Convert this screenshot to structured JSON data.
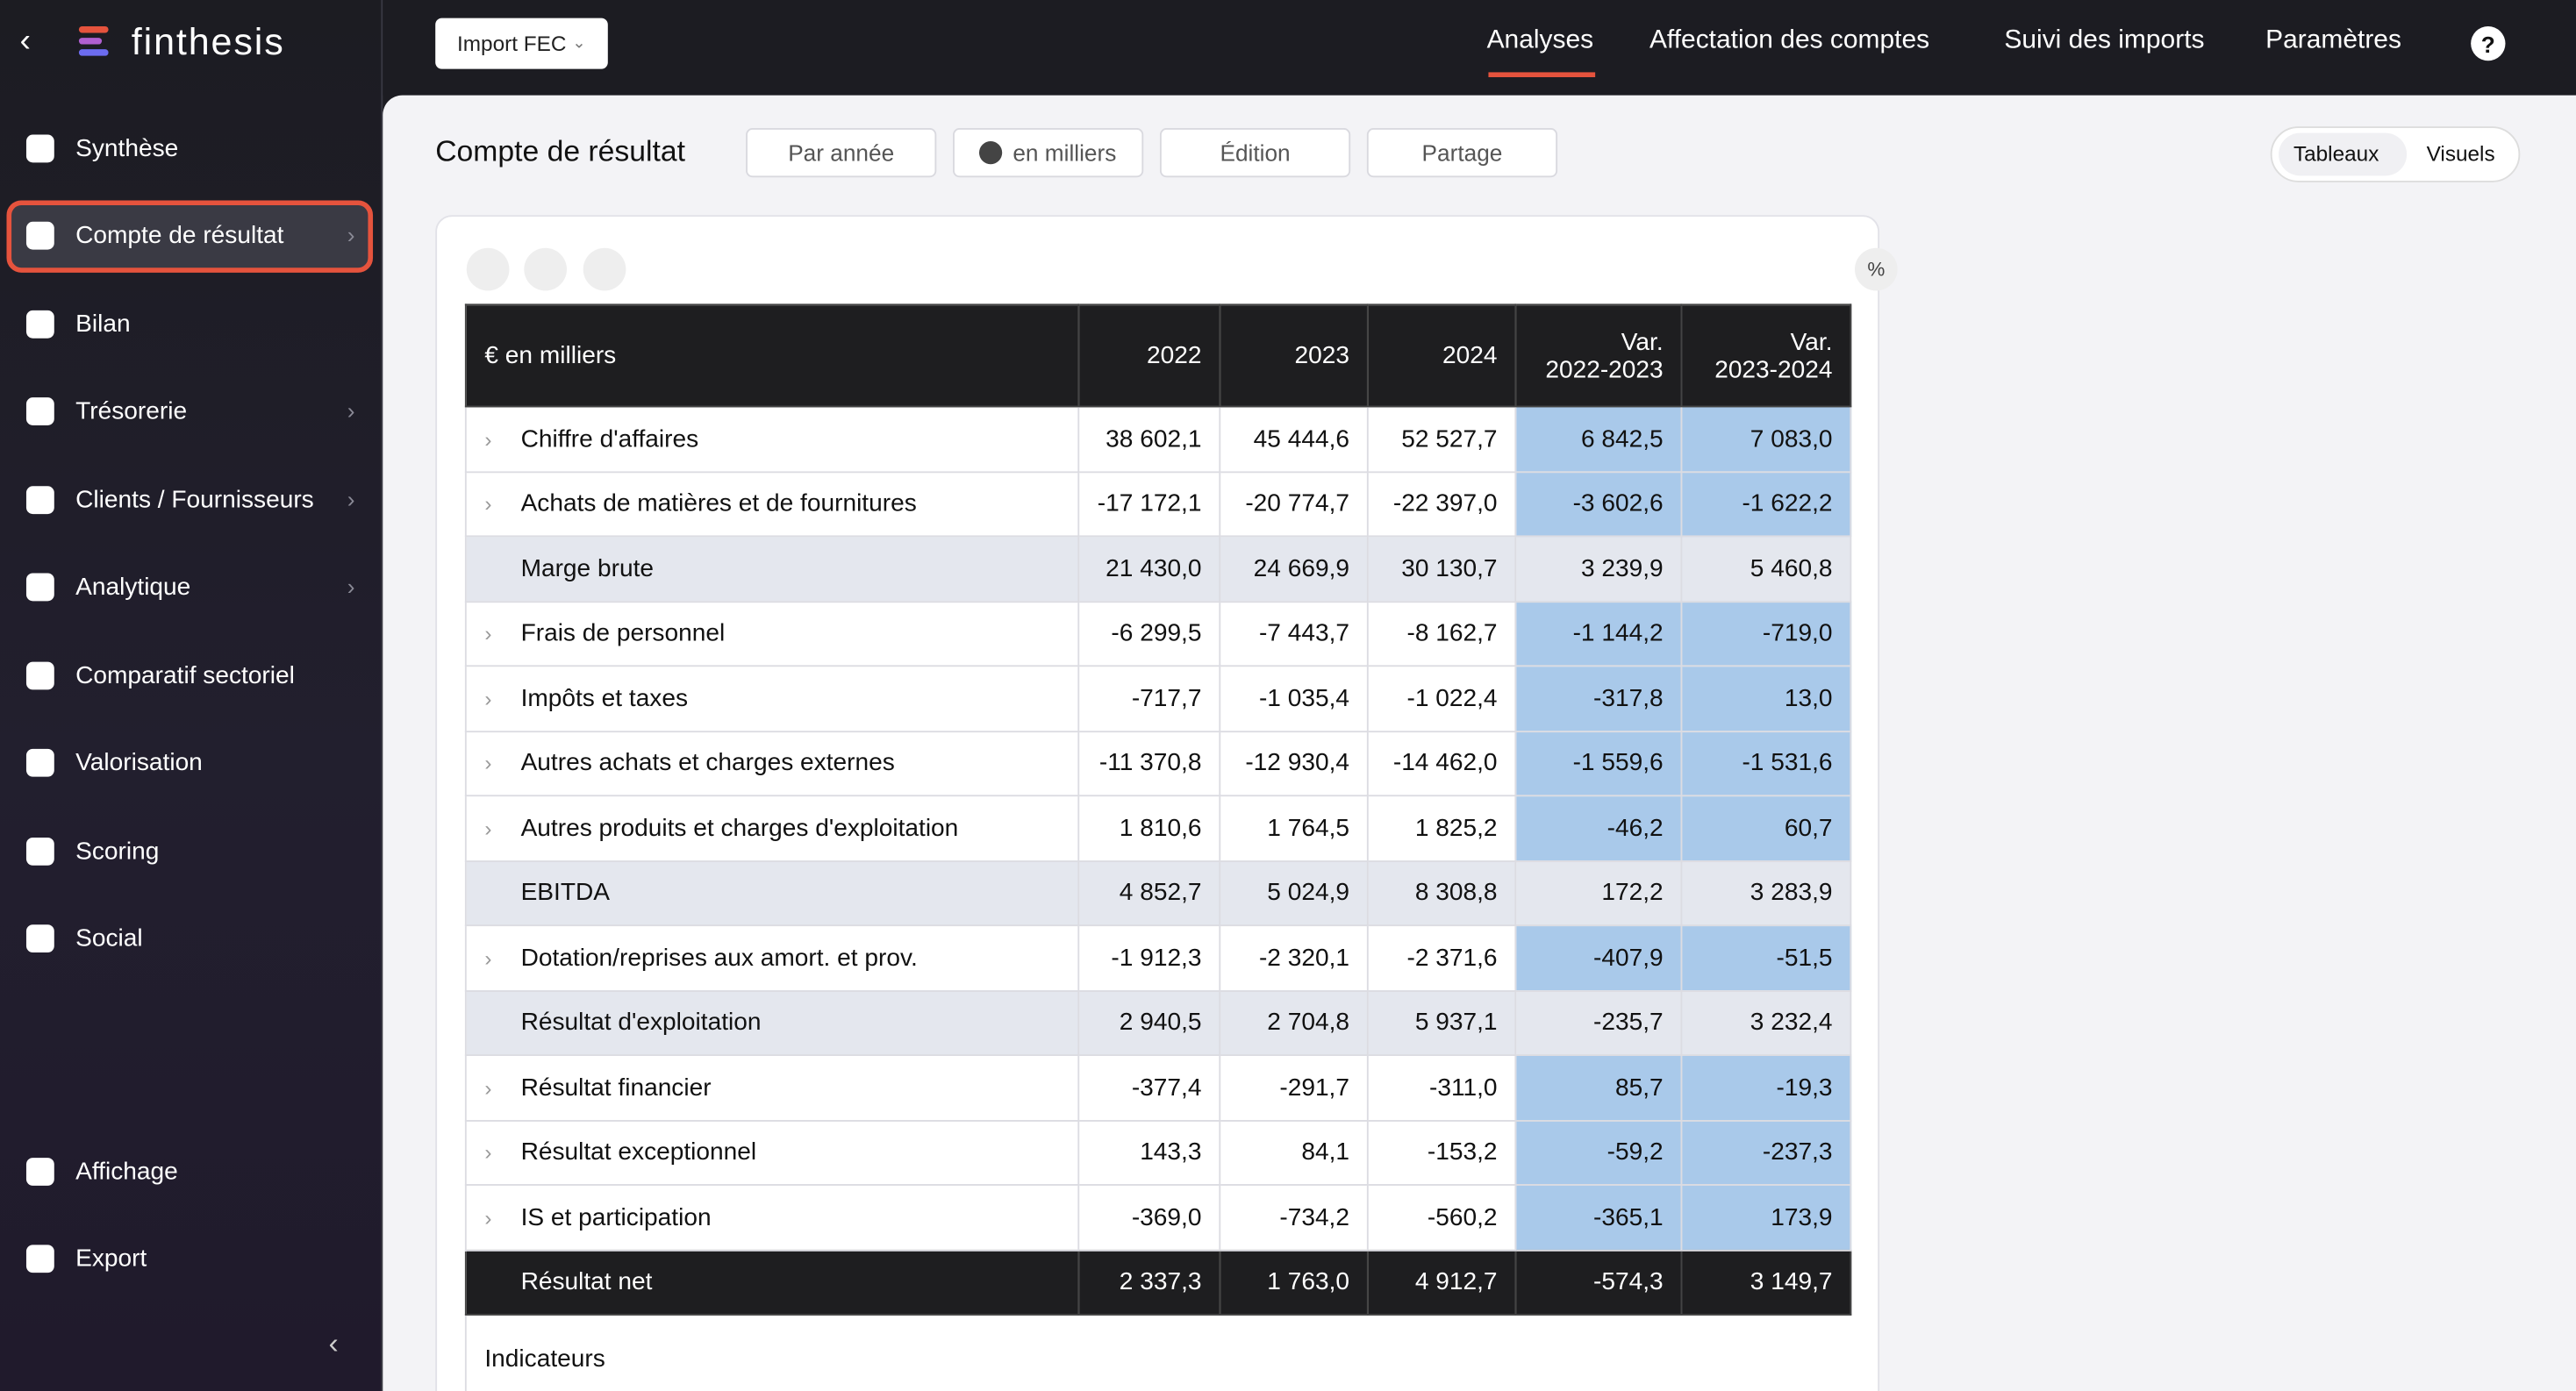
{
  "logo": "finthesis",
  "sidebar": {
    "items": [
      "Synthèse",
      "Compte de résultat",
      "Bilan",
      "Trésorerie",
      "Clients / Fournisseurs",
      "Analytique",
      "Comparatif sectoriel",
      "Valorisation",
      "Scoring",
      "Social"
    ],
    "bottom": [
      "Affichage",
      "Export"
    ]
  },
  "topbar": {
    "import": "Import FEC",
    "nav": [
      "Analyses",
      "Affectation des comptes",
      "Suivi des imports",
      "Paramètres"
    ],
    "help": "?"
  },
  "toolbar": {
    "title": "Compte de résultat",
    "buttons": [
      "Par année",
      "en milliers",
      "Édition",
      "Partage"
    ],
    "toggle": [
      "Tableaux",
      "Visuels"
    ]
  },
  "table": {
    "percent": "%",
    "header": [
      "€ en milliers",
      "2022",
      "2023",
      "2024",
      "Var.\n2022-2023",
      "Var.\n2023-2024"
    ],
    "rows": [
      {
        "label": "Chiffre d'affaires",
        "kind": "detail",
        "values": [
          "38 602,1",
          "45 444,6",
          "52 527,7",
          "6 842,5",
          "7 083,0"
        ]
      },
      {
        "label": "Achats de matières et de fournitures",
        "kind": "detail",
        "values": [
          "-17 172,1",
          "-20 774,7",
          "-22 397,0",
          "-3 602,6",
          "-1 622,2"
        ]
      },
      {
        "label": "Marge brute",
        "kind": "subtotal",
        "values": [
          "21 430,0",
          "24 669,9",
          "30 130,7",
          "3 239,9",
          "5 460,8"
        ]
      },
      {
        "label": "Frais de personnel",
        "kind": "detail",
        "values": [
          "-6 299,5",
          "-7 443,7",
          "-8 162,7",
          "-1 144,2",
          "-719,0"
        ]
      },
      {
        "label": "Impôts et taxes",
        "kind": "detail",
        "values": [
          "-717,7",
          "-1 035,4",
          "-1 022,4",
          "-317,8",
          "13,0"
        ]
      },
      {
        "label": "Autres achats et charges externes",
        "kind": "detail",
        "values": [
          "-11 370,8",
          "-12 930,4",
          "-14 462,0",
          "-1 559,6",
          "-1 531,6"
        ]
      },
      {
        "label": "Autres produits et charges d'exploitation",
        "kind": "detail",
        "values": [
          "1 810,6",
          "1 764,5",
          "1 825,2",
          "-46,2",
          "60,7"
        ]
      },
      {
        "label": "EBITDA",
        "kind": "subtotal",
        "values": [
          "4 852,7",
          "5 024,9",
          "8 308,8",
          "172,2",
          "3 283,9"
        ]
      },
      {
        "label": "Dotation/reprises aux amort. et prov.",
        "kind": "detail",
        "values": [
          "-1 912,3",
          "-2 320,1",
          "-2 371,6",
          "-407,9",
          "-51,5"
        ]
      },
      {
        "label": "Résultat d'exploitation",
        "kind": "subtotal",
        "values": [
          "2 940,5",
          "2 704,8",
          "5 937,1",
          "-235,7",
          "3 232,4"
        ]
      },
      {
        "label": "Résultat financier",
        "kind": "detail",
        "values": [
          "-377,4",
          "-291,7",
          "-311,0",
          "85,7",
          "-19,3"
        ]
      },
      {
        "label": "Résultat exceptionnel",
        "kind": "detail",
        "values": [
          "143,3",
          "84,1",
          "-153,2",
          "-59,2",
          "-237,3"
        ]
      },
      {
        "label": "IS et participation",
        "kind": "detail",
        "values": [
          "-369,0",
          "-734,2",
          "-560,2",
          "-365,1",
          "173,9"
        ]
      },
      {
        "label": "Résultat net",
        "kind": "total",
        "values": [
          "2 337,3",
          "1 763,0",
          "4 912,7",
          "-574,3",
          "3 149,7"
        ]
      }
    ],
    "footer": "Indicateurs"
  }
}
